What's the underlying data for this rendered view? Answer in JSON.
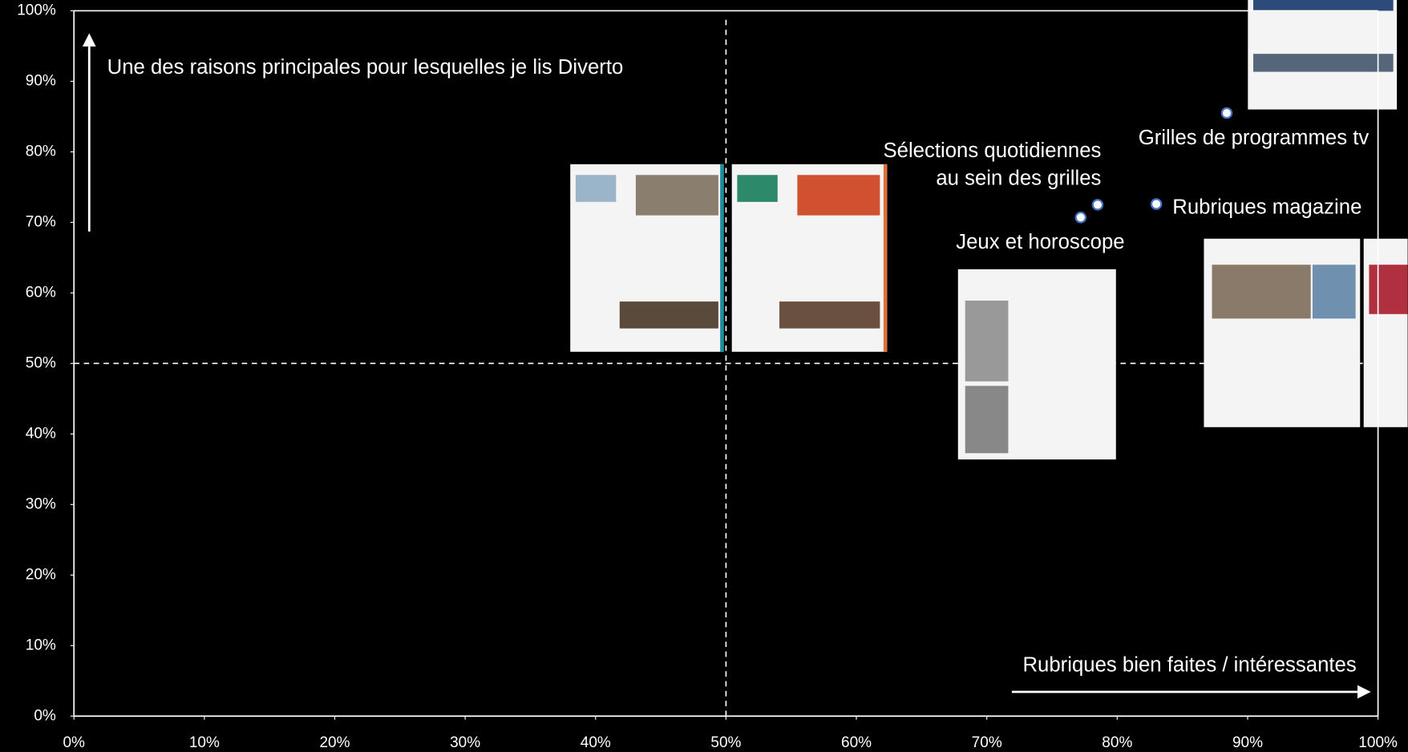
{
  "chart_data": {
    "type": "scatter",
    "xlabel": "Rubriques bien faites / intéressantes",
    "ylabel": "Une des raisons principales pour lesquelles je lis Diverto",
    "labels": [
      "Grilles de programmes tv",
      "Sélections quotidiennes au sein des grilles",
      "Jeux et horoscope",
      "Rubriques magazine"
    ],
    "x": [
      88.4,
      78.5,
      77.2,
      83.0
    ],
    "values": [
      85.5,
      72.5,
      70.7,
      72.6
    ],
    "color": "#4472c4",
    "xlim": [
      0,
      100
    ],
    "ylim": [
      0,
      100
    ],
    "xticks": [
      {
        "value": 0,
        "label": "0%"
      },
      {
        "value": 10,
        "label": "10%"
      },
      {
        "value": 20,
        "label": "20%"
      },
      {
        "value": 30,
        "label": "30%"
      },
      {
        "value": 40,
        "label": "40%"
      },
      {
        "value": 50,
        "label": "50%"
      },
      {
        "value": 60,
        "label": "60%"
      },
      {
        "value": 70,
        "label": "70%"
      },
      {
        "value": 80,
        "label": "80%"
      },
      {
        "value": 90,
        "label": "90%"
      },
      {
        "value": 100,
        "label": "100%"
      }
    ],
    "yticks": [
      {
        "value": 0,
        "label": "0%"
      },
      {
        "value": 10,
        "label": "10%"
      },
      {
        "value": 20,
        "label": "20%"
      },
      {
        "value": 30,
        "label": "30%"
      },
      {
        "value": 40,
        "label": "40%"
      },
      {
        "value": 50,
        "label": "50%"
      },
      {
        "value": 60,
        "label": "60%"
      },
      {
        "value": 70,
        "label": "70%"
      },
      {
        "value": 80,
        "label": "80%"
      },
      {
        "value": 90,
        "label": "90%"
      },
      {
        "value": 100,
        "label": "100%"
      }
    ],
    "xref": 50,
    "yref": 50
  }
}
